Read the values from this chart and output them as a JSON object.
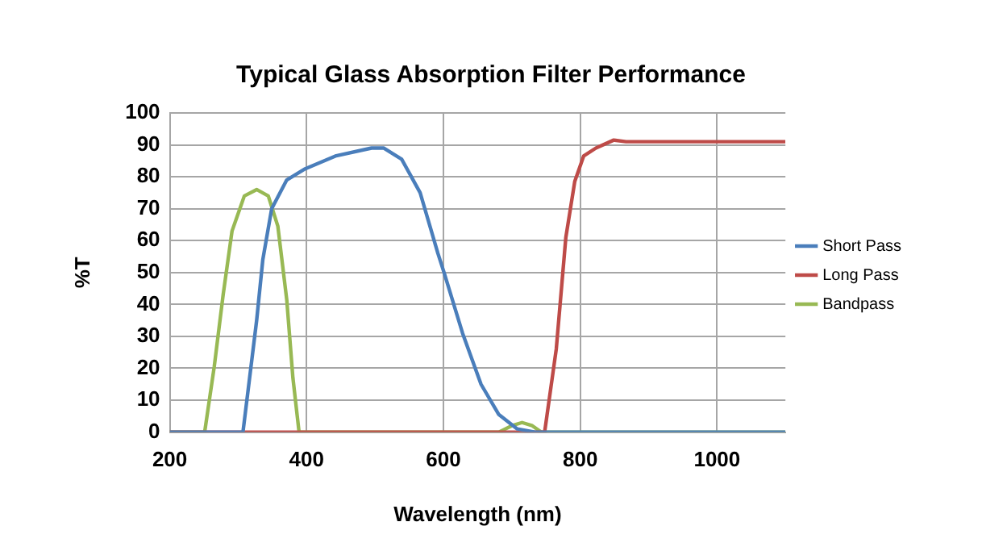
{
  "chart_data": {
    "type": "line",
    "title": "Typical Glass Absorption Filter Performance",
    "xlabel": "Wavelength (nm)",
    "ylabel": "%T",
    "xlim": [
      200,
      1100
    ],
    "xticks": [
      200,
      400,
      600,
      800,
      1000
    ],
    "ylim": [
      0,
      100
    ],
    "yticks": [
      0,
      10,
      20,
      30,
      40,
      50,
      60,
      70,
      80,
      90,
      100
    ],
    "grid": true,
    "legend": "right",
    "marker": "none",
    "line_style": "solid",
    "series": [
      {
        "name": "Short Pass",
        "color": "#4a7ebb",
        "x": [
          200,
          307,
          327,
          336,
          349,
          371,
          398,
          442,
          495,
          513,
          539,
          566,
          592,
          601,
          628,
          655,
          681,
          708,
          734,
          1100
        ],
        "values": [
          0,
          0,
          35,
          54,
          70,
          79,
          82.5,
          86.5,
          89,
          89,
          85.5,
          75,
          56,
          50,
          31,
          15,
          5.5,
          1,
          0,
          0
        ]
      },
      {
        "name": "Long Pass",
        "color": "#be4b48",
        "x": [
          200,
          748,
          765,
          779,
          792,
          805,
          823,
          849,
          867,
          1100
        ],
        "values": [
          0,
          0,
          26,
          61,
          78.5,
          86.5,
          89,
          91.5,
          91,
          91
        ]
      },
      {
        "name": "Bandpass",
        "color": "#98b954",
        "x": [
          200,
          251,
          265,
          278,
          291,
          309,
          327,
          344,
          358,
          371,
          380,
          389,
          681,
          700,
          715,
          730,
          743,
          1100
        ],
        "values": [
          0,
          0,
          20.5,
          43,
          63,
          74,
          76,
          74,
          64.5,
          41.5,
          17,
          0,
          0,
          2,
          3,
          2,
          0,
          0
        ]
      }
    ]
  }
}
